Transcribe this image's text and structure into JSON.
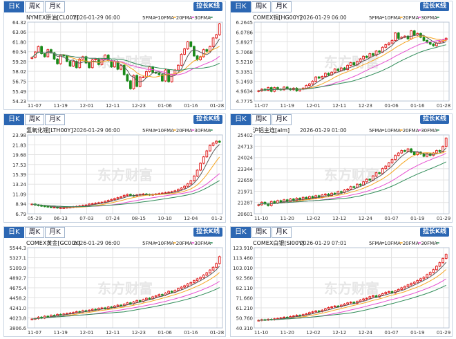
{
  "common": {
    "tabs": [
      "日K",
      "周K",
      "月K"
    ],
    "zoom_label": "拉长K线",
    "legend": [
      {
        "label": "5FMA",
        "color": "#555555"
      },
      {
        "label": "10FMA",
        "color": "#f5a623"
      },
      {
        "label": "20FMA",
        "color": "#e64fd0"
      },
      {
        "label": "30FMA",
        "color": "#2e8b57"
      }
    ],
    "watermark": "东方财富",
    "colors": {
      "up": "#e02020",
      "down": "#1a8a1a",
      "grid": "#e3e3e3",
      "axis": "#333333"
    }
  },
  "charts": [
    {
      "title": "NYMEX原油[CL00Y]",
      "datetime": "2026-01-29 06:00",
      "chart_data": {
        "type": "candlestick",
        "y_ticks": [
          "64.32",
          "63.06",
          "61.80",
          "60.54",
          "59.28",
          "58.02",
          "56.75",
          "55.49",
          "54.23"
        ],
        "ylim": [
          54.23,
          64.32
        ],
        "x_ticks": [
          "11-07",
          "11-19",
          "12-01",
          "12-11",
          "12-23",
          "01-06",
          "01-16",
          "01-28"
        ],
        "close": [
          59.8,
          60.5,
          61.2,
          60.3,
          59.9,
          60.8,
          60.4,
          59.6,
          59.0,
          60.1,
          60.0,
          59.3,
          58.7,
          59.3,
          58.5,
          59.6,
          59.9,
          59.1,
          58.5,
          59.5,
          59.6,
          58.9,
          59.6,
          60.1,
          59.4,
          58.6,
          59.3,
          58.3,
          58.8,
          57.6,
          56.8,
          55.8,
          57.5,
          56.1,
          57.3,
          57.3,
          58.0,
          58.6,
          57.9,
          57.8,
          57.6,
          56.8,
          58.2,
          56.7,
          57.6,
          58.2,
          58.8,
          60.2,
          60.9,
          61.8,
          61.2,
          60.0,
          59.5,
          59.9,
          60.8,
          60.6,
          61.2,
          62.3,
          62.7,
          64.1
        ]
      }
    },
    {
      "title": "COMEX铜[HG00Y]",
      "datetime": "2026-01-29 06:00",
      "chart_data": {
        "type": "candlestick",
        "y_ticks": [
          "6.2645",
          "6.0786",
          "5.8927",
          "5.7068",
          "5.5210",
          "5.3351",
          "5.1493",
          "4.9634",
          "4.7775"
        ],
        "ylim": [
          4.7775,
          6.2645
        ],
        "x_ticks": [
          "11-07",
          "11-19",
          "12-01",
          "12-11",
          "12-23",
          "01-06",
          "01-16",
          "01-28"
        ],
        "close": [
          4.97,
          5.0,
          4.98,
          5.03,
          4.96,
          5.03,
          5.0,
          4.99,
          5.04,
          5.01,
          4.99,
          5.02,
          4.97,
          5.0,
          5.02,
          5.07,
          5.1,
          5.15,
          5.23,
          5.21,
          5.24,
          5.3,
          5.27,
          5.32,
          5.38,
          5.35,
          5.4,
          5.37,
          5.45,
          5.5,
          5.46,
          5.52,
          5.57,
          5.62,
          5.6,
          5.67,
          5.64,
          5.72,
          5.7,
          5.79,
          5.84,
          5.87,
          5.92,
          6.06,
          5.96,
          5.98,
          6.0,
          5.95,
          6.1,
          6.02,
          6.05,
          5.98,
          5.92,
          5.88,
          5.85,
          5.82,
          5.87,
          5.9,
          5.93,
          5.96
        ]
      }
    },
    {
      "title": "氢氧化锂[LTH00Y]",
      "datetime": "2026-01-29 06:00",
      "chart_data": {
        "type": "candlestick",
        "y_ticks": [
          "23.98",
          "21.83",
          "19.68",
          "17.53",
          "15.39",
          "13.24",
          "11.09",
          "8.94",
          "6.79"
        ],
        "ylim": [
          6.79,
          23.98
        ],
        "x_ticks": [
          "05-29",
          "06-13",
          "07-03",
          "07-24",
          "08-15",
          "10-10",
          "12-04",
          "01-2"
        ],
        "close": [
          8.9,
          8.7,
          8.6,
          8.5,
          8.4,
          8.3,
          8.2,
          8.2,
          8.1,
          8.1,
          8.1,
          8.2,
          8.2,
          8.3,
          8.4,
          8.5,
          8.6,
          8.7,
          8.9,
          9.0,
          9.1,
          9.2,
          9.3,
          9.5,
          9.7,
          9.9,
          10.1,
          10.3,
          10.5,
          10.8,
          11.0,
          10.8,
          10.7,
          10.9,
          11.0,
          11.1,
          11.0,
          10.9,
          11.0,
          11.1,
          11.2,
          11.3,
          11.4,
          11.5,
          11.6,
          11.8,
          12.1,
          12.4,
          12.8,
          13.3,
          14.0,
          15.0,
          16.3,
          17.8,
          19.2,
          20.5,
          21.7,
          22.2,
          22.6,
          22.4
        ]
      }
    },
    {
      "title": "沪铝主连[alm]",
      "datetime": "2026-01-29 01:00",
      "chart_data": {
        "type": "candlestick",
        "y_ticks": [
          "25402",
          "24713",
          "24024",
          "23344",
          "22659",
          "21971",
          "21287",
          "20601"
        ],
        "ylim": [
          20601,
          25402
        ],
        "x_ticks": [
          "11-10",
          "11-20",
          "12-02",
          "12-12",
          "12-24",
          "01-07",
          "01-19",
          "01-29"
        ],
        "close": [
          21150,
          21300,
          21200,
          21100,
          21350,
          21250,
          21400,
          21300,
          21450,
          21350,
          21500,
          21400,
          21550,
          21450,
          21600,
          21500,
          21650,
          21550,
          21700,
          21600,
          21750,
          21800,
          21700,
          21850,
          21800,
          21950,
          21900,
          22050,
          22100,
          22250,
          22200,
          22400,
          22350,
          22550,
          22700,
          22650,
          22900,
          23100,
          23050,
          23350,
          23500,
          23700,
          23900,
          24150,
          24300,
          24450,
          24400,
          24550,
          24350,
          24200,
          24350,
          24250,
          24100,
          24250,
          24150,
          24300,
          24450,
          24400,
          24700,
          25200
        ]
      }
    },
    {
      "title": "COMEX黄金[GC00Y]",
      "datetime": "2026-01-29 06:00",
      "chart_data": {
        "type": "candlestick",
        "y_ticks": [
          "5544.3",
          "5327.1",
          "5109.9",
          "4892.7",
          "4675.4",
          "4458.2",
          "4241.0",
          "4023.8",
          "3806.6"
        ],
        "ylim": [
          3806.6,
          5544.3
        ],
        "x_ticks": [
          "11-07",
          "11-19",
          "12-01",
          "12-11",
          "12-23",
          "01-06",
          "01-16",
          "01-28"
        ],
        "close": [
          4000,
          4010,
          4040,
          4020,
          4060,
          4050,
          4080,
          4070,
          4100,
          4090,
          4110,
          4120,
          4130,
          4140,
          4160,
          4150,
          4180,
          4170,
          4190,
          4210,
          4200,
          4230,
          4240,
          4220,
          4260,
          4250,
          4280,
          4300,
          4290,
          4320,
          4350,
          4330,
          4370,
          4400,
          4380,
          4420,
          4450,
          4440,
          4480,
          4500,
          4530,
          4520,
          4560,
          4600,
          4580,
          4620,
          4660,
          4690,
          4720,
          4760,
          4790,
          4830,
          4870,
          4900,
          4950,
          5000,
          5060,
          5120,
          5200,
          5350
        ]
      }
    },
    {
      "title": "COMEX白银[SI00Y]",
      "datetime": "2026-01-29 07:01",
      "chart_data": {
        "type": "candlestick",
        "y_ticks": [
          "123.910",
          "113.460",
          "103.010",
          "92.560",
          "82.110",
          "71.660",
          "61.210",
          "50.760",
          "40.310"
        ],
        "ylim": [
          40.31,
          123.91
        ],
        "x_ticks": [
          "11-10",
          "11-20",
          "12-02",
          "12-12",
          "12-24",
          "01-07",
          "01-19",
          "01-29"
        ],
        "close": [
          48.2,
          48.9,
          48.5,
          49.3,
          49.0,
          49.8,
          50.2,
          50.8,
          51.5,
          51.0,
          52.2,
          52.8,
          53.5,
          53.0,
          54.2,
          55.0,
          56.3,
          57.1,
          58.0,
          57.4,
          58.8,
          60.2,
          61.5,
          62.3,
          63.1,
          62.5,
          64.0,
          65.2,
          66.4,
          67.1,
          66.0,
          67.8,
          69.3,
          70.5,
          71.2,
          72.9,
          73.8,
          72.6,
          74.5,
          76.0,
          77.4,
          78.2,
          76.8,
          78.9,
          80.4,
          82.1,
          83.5,
          85.2,
          86.6,
          88.0,
          89.7,
          91.5,
          93.2,
          95.8,
          98.1,
          101.0,
          104.6,
          108.3,
          112.7,
          116.9
        ]
      }
    }
  ]
}
